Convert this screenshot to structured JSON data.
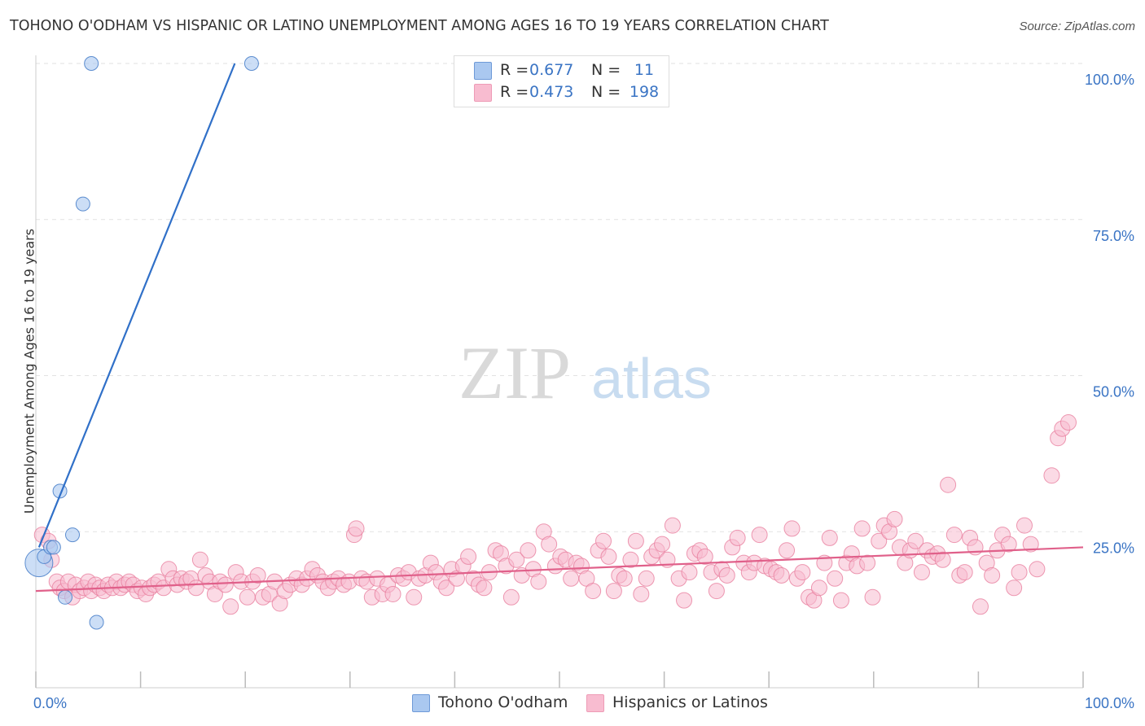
{
  "title": "TOHONO O'ODHAM VS HISPANIC OR LATINO UNEMPLOYMENT AMONG AGES 16 TO 19 YEARS CORRELATION CHART",
  "source": "Source: ZipAtlas.com",
  "watermark": {
    "zip": "ZIP",
    "atlas": "atlas"
  },
  "legend": {
    "r_label": "R =",
    "n_label": "N =",
    "rows": [
      {
        "r": "0.677",
        "n": "11",
        "color": "#aac8f0"
      },
      {
        "r": "0.473",
        "n": "198",
        "color": "#f8bcd0"
      }
    ]
  },
  "bottom_legend": [
    "Tohono O'odham",
    "Hispanics or Latinos"
  ],
  "chart_data": {
    "type": "scatter",
    "xlabel": "",
    "ylabel": "Unemployment Among Ages 16 to 19 years",
    "xlim": [
      0,
      100
    ],
    "ylim": [
      0,
      100
    ],
    "x_tick_labels": [
      "0.0%",
      "100.0%"
    ],
    "y_tick_labels": [
      "25.0%",
      "50.0%",
      "75.0%",
      "100.0%"
    ],
    "y_ticks": [
      25,
      50,
      75,
      100
    ],
    "grid": true,
    "legend_position": "top-center",
    "series": [
      {
        "name": "Tohono O'odham",
        "color": "#aac8f0",
        "stroke": "#3a74c4",
        "trend": {
          "x": [
            0.3,
            19
          ],
          "y": [
            22.5,
            100
          ],
          "color": "#3070c8"
        },
        "points": [
          [
            0.3,
            20
          ],
          [
            0.8,
            21
          ],
          [
            1.4,
            22.5
          ],
          [
            1.7,
            22.5
          ],
          [
            2.3,
            31.5
          ],
          [
            2.8,
            14.5
          ],
          [
            3.5,
            24.5
          ],
          [
            4.5,
            77.5
          ],
          [
            5.8,
            10.5
          ],
          [
            5.3,
            100
          ],
          [
            20.6,
            100
          ]
        ]
      },
      {
        "name": "Hispanics or Latinos",
        "color": "#f8bcd0",
        "stroke": "#e8809f",
        "trend": {
          "x": [
            0,
            100
          ],
          "y": [
            15.5,
            22.5
          ],
          "color": "#e0608a"
        },
        "points": [
          [
            0.6,
            24.5
          ],
          [
            1.2,
            23.5
          ],
          [
            1.5,
            20.5
          ],
          [
            2.0,
            17.0
          ],
          [
            2.3,
            16.0
          ],
          [
            2.7,
            15.5
          ],
          [
            3.1,
            17.0
          ],
          [
            3.5,
            14.5
          ],
          [
            3.8,
            16.5
          ],
          [
            4.2,
            15.5
          ],
          [
            4.6,
            16.0
          ],
          [
            5.0,
            17.0
          ],
          [
            5.3,
            15.5
          ],
          [
            5.7,
            16.5
          ],
          [
            6.1,
            16.0
          ],
          [
            6.5,
            15.5
          ],
          [
            6.9,
            16.5
          ],
          [
            7.3,
            16.0
          ],
          [
            7.7,
            17.0
          ],
          [
            8.1,
            16.0
          ],
          [
            8.5,
            16.5
          ],
          [
            8.9,
            17.0
          ],
          [
            9.3,
            16.5
          ],
          [
            9.7,
            15.5
          ],
          [
            10.1,
            16.0
          ],
          [
            10.5,
            15.0
          ],
          [
            10.9,
            16.0
          ],
          [
            11.3,
            16.5
          ],
          [
            11.7,
            17.0
          ],
          [
            12.2,
            16.0
          ],
          [
            12.7,
            19.0
          ],
          [
            13.1,
            17.5
          ],
          [
            13.5,
            16.5
          ],
          [
            13.9,
            17.5
          ],
          [
            14.4,
            17.0
          ],
          [
            14.8,
            17.5
          ],
          [
            15.3,
            16.0
          ],
          [
            15.7,
            20.5
          ],
          [
            16.2,
            18.0
          ],
          [
            16.6,
            17.0
          ],
          [
            17.1,
            15.0
          ],
          [
            17.6,
            17.0
          ],
          [
            18.1,
            16.5
          ],
          [
            18.6,
            13.0
          ],
          [
            19.1,
            18.5
          ],
          [
            19.6,
            17.0
          ],
          [
            20.2,
            14.5
          ],
          [
            20.7,
            17.0
          ],
          [
            21.2,
            18.0
          ],
          [
            21.7,
            14.5
          ],
          [
            22.3,
            15.0
          ],
          [
            22.8,
            17.0
          ],
          [
            23.3,
            13.5
          ],
          [
            23.8,
            15.5
          ],
          [
            24.3,
            16.5
          ],
          [
            24.9,
            17.5
          ],
          [
            25.4,
            16.5
          ],
          [
            25.9,
            17.5
          ],
          [
            26.4,
            19.0
          ],
          [
            26.9,
            18.0
          ],
          [
            27.4,
            17.0
          ],
          [
            27.9,
            16.0
          ],
          [
            28.4,
            17.0
          ],
          [
            28.9,
            17.5
          ],
          [
            29.4,
            16.5
          ],
          [
            29.9,
            17.0
          ],
          [
            30.4,
            24.5
          ],
          [
            30.6,
            25.5
          ],
          [
            31.1,
            17.5
          ],
          [
            31.6,
            17.0
          ],
          [
            32.1,
            14.5
          ],
          [
            32.6,
            17.5
          ],
          [
            33.1,
            15.0
          ],
          [
            33.6,
            16.5
          ],
          [
            34.1,
            15.0
          ],
          [
            34.6,
            18.0
          ],
          [
            35.1,
            17.5
          ],
          [
            35.6,
            18.5
          ],
          [
            36.1,
            14.5
          ],
          [
            36.6,
            17.5
          ],
          [
            37.2,
            18.0
          ],
          [
            37.7,
            20.0
          ],
          [
            38.2,
            18.5
          ],
          [
            38.7,
            17.0
          ],
          [
            39.2,
            16.0
          ],
          [
            39.7,
            19.0
          ],
          [
            40.2,
            17.5
          ],
          [
            40.8,
            19.5
          ],
          [
            41.3,
            21.0
          ],
          [
            41.8,
            17.5
          ],
          [
            42.3,
            16.5
          ],
          [
            42.8,
            16.0
          ],
          [
            43.3,
            18.5
          ],
          [
            43.9,
            22.0
          ],
          [
            44.4,
            21.5
          ],
          [
            44.9,
            19.5
          ],
          [
            45.4,
            14.5
          ],
          [
            45.9,
            20.5
          ],
          [
            46.4,
            18.0
          ],
          [
            47.0,
            22.0
          ],
          [
            47.5,
            19.0
          ],
          [
            48.0,
            17.0
          ],
          [
            48.5,
            25.0
          ],
          [
            49.0,
            23.0
          ],
          [
            49.6,
            19.5
          ],
          [
            50.1,
            21.0
          ],
          [
            50.6,
            20.5
          ],
          [
            51.1,
            17.5
          ],
          [
            51.6,
            20.0
          ],
          [
            52.1,
            19.5
          ],
          [
            52.6,
            17.5
          ],
          [
            53.2,
            15.5
          ],
          [
            53.7,
            22.0
          ],
          [
            54.2,
            23.5
          ],
          [
            54.7,
            21.0
          ],
          [
            55.2,
            15.5
          ],
          [
            55.7,
            18.0
          ],
          [
            56.2,
            17.5
          ],
          [
            56.8,
            20.5
          ],
          [
            57.3,
            23.5
          ],
          [
            57.8,
            15.0
          ],
          [
            58.3,
            17.5
          ],
          [
            58.8,
            21.0
          ],
          [
            59.3,
            22.0
          ],
          [
            59.8,
            23.0
          ],
          [
            60.3,
            20.5
          ],
          [
            60.8,
            26.0
          ],
          [
            61.4,
            17.5
          ],
          [
            61.9,
            14.0
          ],
          [
            62.4,
            18.5
          ],
          [
            62.9,
            21.5
          ],
          [
            63.4,
            22.0
          ],
          [
            63.9,
            21.0
          ],
          [
            64.5,
            18.5
          ],
          [
            65.0,
            15.5
          ],
          [
            65.5,
            19.0
          ],
          [
            66.0,
            18.0
          ],
          [
            66.5,
            22.5
          ],
          [
            67.0,
            24.0
          ],
          [
            67.6,
            20.0
          ],
          [
            68.1,
            18.5
          ],
          [
            68.6,
            20.0
          ],
          [
            69.1,
            24.5
          ],
          [
            69.6,
            19.5
          ],
          [
            70.2,
            19.0
          ],
          [
            70.7,
            18.5
          ],
          [
            71.2,
            18.0
          ],
          [
            71.7,
            22.0
          ],
          [
            72.2,
            25.5
          ],
          [
            72.7,
            17.5
          ],
          [
            73.2,
            18.5
          ],
          [
            73.8,
            14.5
          ],
          [
            74.3,
            14.0
          ],
          [
            74.8,
            16.0
          ],
          [
            75.3,
            20.0
          ],
          [
            75.8,
            24.0
          ],
          [
            76.3,
            17.5
          ],
          [
            76.9,
            14.0
          ],
          [
            77.4,
            20.0
          ],
          [
            77.9,
            21.5
          ],
          [
            78.4,
            19.5
          ],
          [
            78.9,
            25.5
          ],
          [
            79.4,
            20.0
          ],
          [
            79.9,
            14.5
          ],
          [
            80.5,
            23.5
          ],
          [
            81.0,
            26.0
          ],
          [
            81.5,
            25.0
          ],
          [
            82.0,
            27.0
          ],
          [
            82.5,
            22.5
          ],
          [
            83.0,
            20.0
          ],
          [
            83.5,
            22.0
          ],
          [
            84.0,
            23.5
          ],
          [
            84.6,
            18.5
          ],
          [
            85.1,
            22.0
          ],
          [
            85.6,
            21.0
          ],
          [
            86.1,
            21.5
          ],
          [
            86.6,
            20.5
          ],
          [
            87.1,
            32.5
          ],
          [
            87.7,
            24.5
          ],
          [
            88.2,
            18.0
          ],
          [
            88.7,
            18.5
          ],
          [
            89.2,
            24.0
          ],
          [
            89.7,
            22.5
          ],
          [
            90.2,
            13.0
          ],
          [
            90.8,
            20.0
          ],
          [
            91.3,
            18.0
          ],
          [
            91.8,
            22.0
          ],
          [
            92.3,
            24.5
          ],
          [
            92.9,
            23.0
          ],
          [
            93.4,
            16.0
          ],
          [
            93.9,
            18.5
          ],
          [
            94.4,
            26.0
          ],
          [
            95.0,
            23.0
          ],
          [
            95.6,
            19.0
          ],
          [
            97.0,
            34.0
          ],
          [
            97.6,
            40.0
          ],
          [
            98.0,
            41.5
          ],
          [
            98.6,
            42.5
          ]
        ]
      }
    ]
  }
}
